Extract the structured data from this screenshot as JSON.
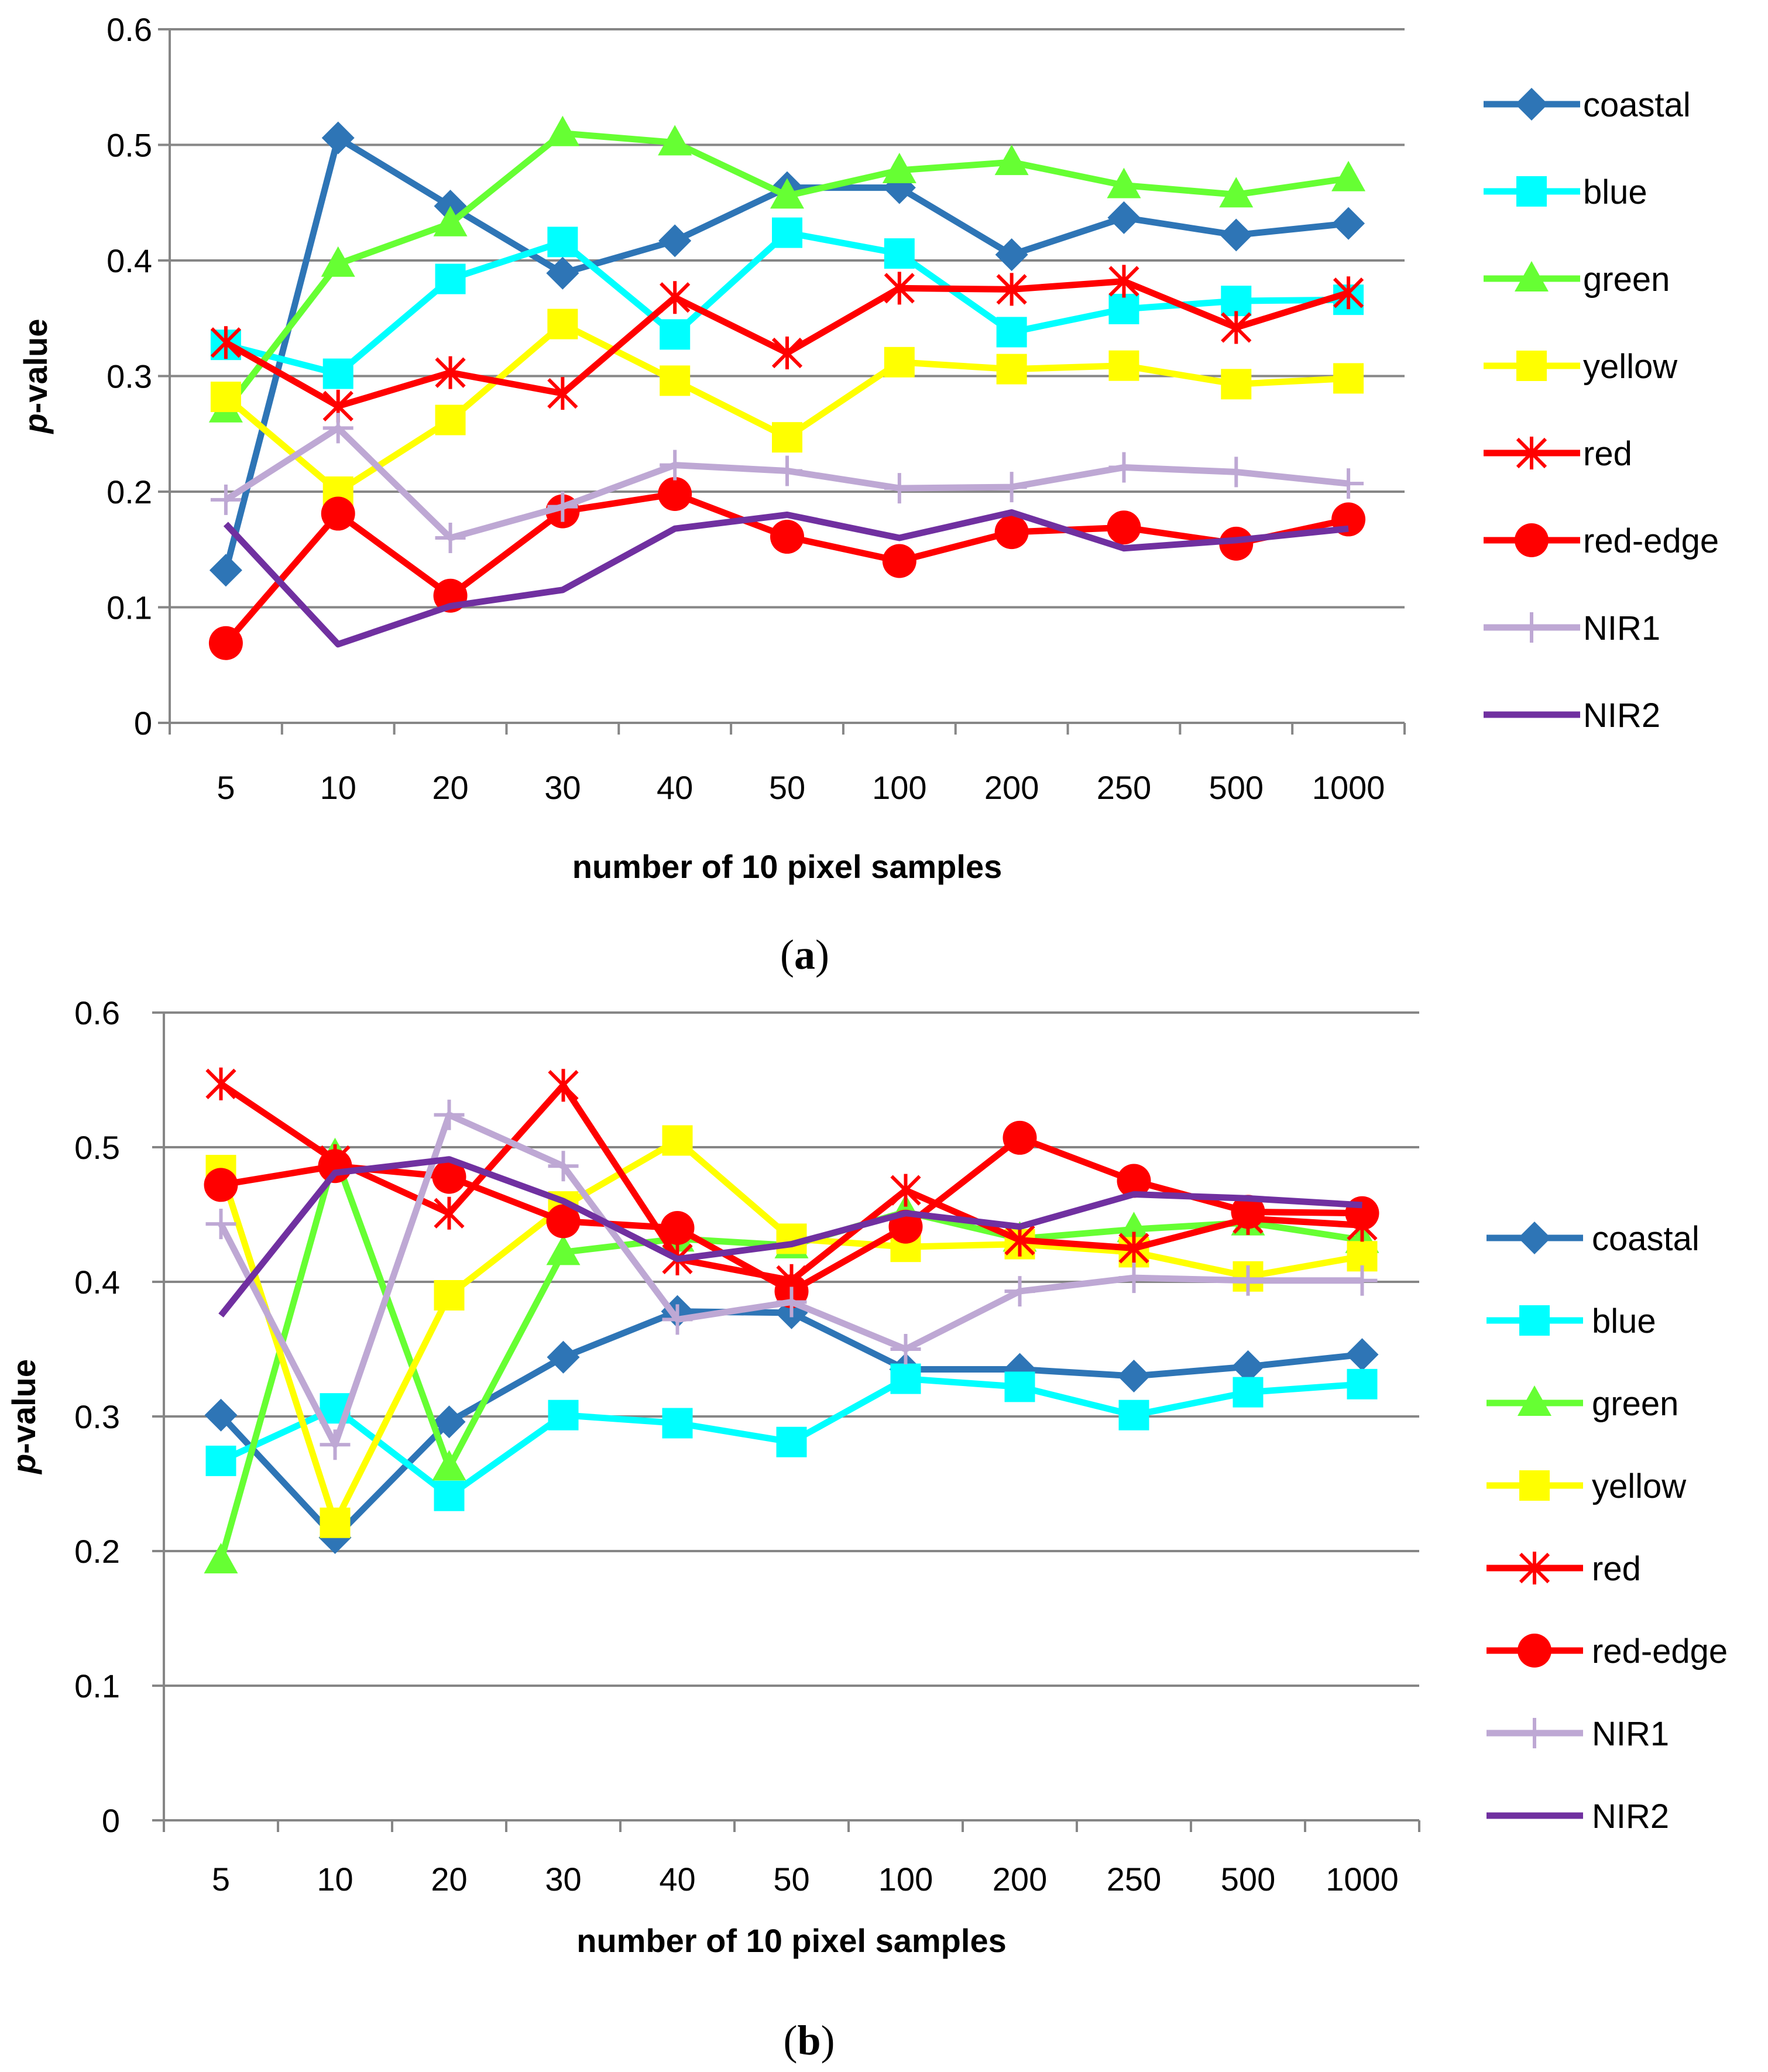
{
  "chart_data": [
    {
      "type": "line",
      "panel_label": "a",
      "title": "",
      "xlabel": "number of 10 pixel samples",
      "ylabel_italic": "p",
      "ylabel_rest": "-value",
      "ylim": [
        0,
        0.6
      ],
      "yticks": [
        "0",
        "0.1",
        "0.2",
        "0.3",
        "0.4",
        "0.5",
        "0.6"
      ],
      "categories": [
        "5",
        "10",
        "20",
        "30",
        "40",
        "50",
        "100",
        "200",
        "250",
        "500",
        "1000"
      ],
      "legend_position": "right",
      "series": [
        {
          "name": "coastal",
          "color": "#2E75B6",
          "marker": "diamond",
          "values": [
            0.132,
            0.506,
            0.447,
            0.389,
            0.417,
            0.463,
            0.463,
            0.405,
            0.437,
            0.422,
            0.432
          ]
        },
        {
          "name": "blue",
          "color": "#00FFFF",
          "marker": "square",
          "values": [
            0.327,
            0.302,
            0.384,
            0.416,
            0.336,
            0.424,
            0.406,
            0.338,
            0.358,
            0.365,
            0.366
          ]
        },
        {
          "name": "green",
          "color": "#66FF33",
          "marker": "triangle",
          "values": [
            0.271,
            0.397,
            0.432,
            0.51,
            0.502,
            0.456,
            0.478,
            0.485,
            0.465,
            0.457,
            0.471
          ]
        },
        {
          "name": "yellow",
          "color": "#FFFF00",
          "marker": "square",
          "values": [
            0.282,
            0.2,
            0.262,
            0.345,
            0.296,
            0.247,
            0.312,
            0.306,
            0.309,
            0.293,
            0.298
          ]
        },
        {
          "name": "red",
          "color": "#FF0000",
          "marker": "star",
          "values": [
            0.329,
            0.274,
            0.303,
            0.285,
            0.368,
            0.32,
            0.376,
            0.375,
            0.382,
            0.342,
            0.372
          ]
        },
        {
          "name": "red-edge",
          "color": "#FF0000",
          "marker": "circle",
          "values": [
            0.069,
            0.181,
            0.11,
            0.183,
            0.198,
            0.161,
            0.14,
            0.165,
            0.169,
            0.155,
            0.176
          ]
        },
        {
          "name": "NIR1",
          "color": "#BEA8D4",
          "marker": "plus",
          "values": [
            0.193,
            0.255,
            0.16,
            0.187,
            0.223,
            0.218,
            0.203,
            0.204,
            0.221,
            0.217,
            0.207
          ]
        },
        {
          "name": "NIR2",
          "color": "#7030A0",
          "marker": "dash",
          "values": [
            0.172,
            0.068,
            0.101,
            0.115,
            0.168,
            0.18,
            0.16,
            0.182,
            0.151,
            0.158,
            0.168
          ]
        }
      ]
    },
    {
      "type": "line",
      "panel_label": "b",
      "title": "",
      "xlabel": "number of 10 pixel samples",
      "ylabel_italic": "p",
      "ylabel_rest": "-value",
      "ylim": [
        0,
        0.6
      ],
      "yticks": [
        "0",
        "0.1",
        "0.2",
        "0.3",
        "0.4",
        "0.5",
        "0.6"
      ],
      "categories": [
        "5",
        "10",
        "20",
        "30",
        "40",
        "50",
        "100",
        "200",
        "250",
        "500",
        "1000"
      ],
      "legend_position": "right",
      "series": [
        {
          "name": "coastal",
          "color": "#2E75B6",
          "marker": "diamond",
          "values": [
            0.301,
            0.21,
            0.296,
            0.344,
            0.378,
            0.377,
            0.335,
            0.335,
            0.33,
            0.337,
            0.346
          ]
        },
        {
          "name": "blue",
          "color": "#00FFFF",
          "marker": "square",
          "values": [
            0.267,
            0.306,
            0.241,
            0.301,
            0.295,
            0.281,
            0.328,
            0.322,
            0.301,
            0.318,
            0.324
          ]
        },
        {
          "name": "green",
          "color": "#66FF33",
          "marker": "triangle",
          "values": [
            0.193,
            0.494,
            0.262,
            0.422,
            0.432,
            0.427,
            0.452,
            0.432,
            0.439,
            0.444,
            0.431
          ]
        },
        {
          "name": "yellow",
          "color": "#FFFF00",
          "marker": "square",
          "values": [
            0.483,
            0.221,
            0.39,
            0.456,
            0.505,
            0.432,
            0.426,
            0.428,
            0.422,
            0.404,
            0.419
          ]
        },
        {
          "name": "red",
          "color": "#FF0000",
          "marker": "star",
          "values": [
            0.547,
            0.49,
            0.451,
            0.546,
            0.417,
            0.401,
            0.468,
            0.431,
            0.425,
            0.447,
            0.442
          ]
        },
        {
          "name": "red-edge",
          "color": "#FF0000",
          "marker": "circle",
          "values": [
            0.472,
            0.486,
            0.478,
            0.445,
            0.44,
            0.393,
            0.441,
            0.507,
            0.475,
            0.452,
            0.451
          ]
        },
        {
          "name": "NIR1",
          "color": "#BEA8D4",
          "marker": "plus",
          "values": [
            0.443,
            0.279,
            0.524,
            0.486,
            0.372,
            0.385,
            0.35,
            0.393,
            0.403,
            0.401,
            0.401
          ]
        },
        {
          "name": "NIR2",
          "color": "#7030A0",
          "marker": "dash",
          "values": [
            0.375,
            0.481,
            0.491,
            0.46,
            0.417,
            0.428,
            0.451,
            0.441,
            0.465,
            0.462,
            0.457
          ]
        }
      ]
    }
  ]
}
